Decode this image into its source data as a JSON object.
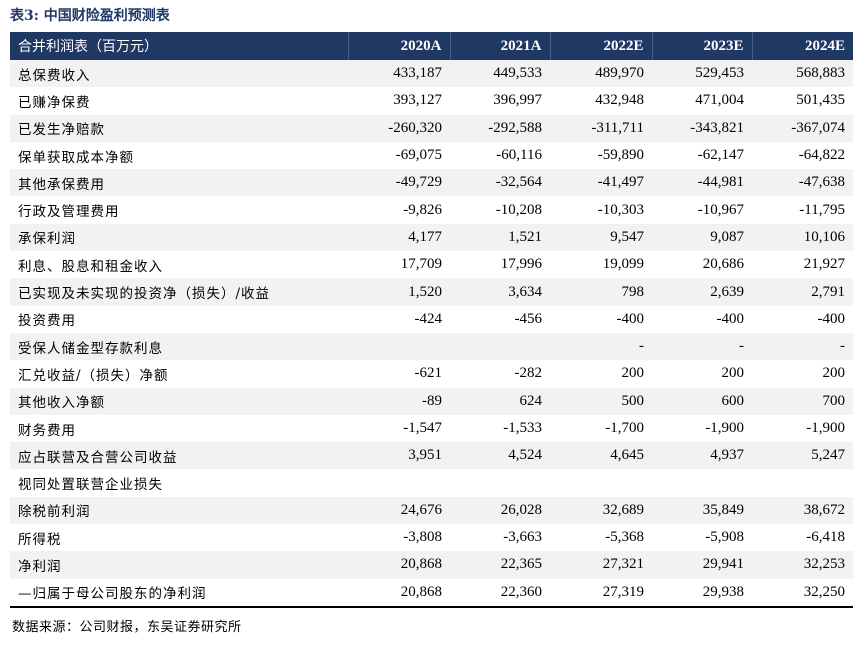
{
  "title": "表3:  中国财险盈利预测表",
  "table": {
    "headers": [
      "合并利润表（百万元）",
      "2020A",
      "2021A",
      "2022E",
      "2023E",
      "2024E"
    ],
    "rows": [
      [
        "总保费收入",
        "433,187",
        "449,533",
        "489,970",
        "529,453",
        "568,883"
      ],
      [
        "已赚净保费",
        "393,127",
        "396,997",
        "432,948",
        "471,004",
        "501,435"
      ],
      [
        "已发生净赔款",
        "-260,320",
        "-292,588",
        "-311,711",
        "-343,821",
        "-367,074"
      ],
      [
        "保单获取成本净额",
        "-69,075",
        "-60,116",
        "-59,890",
        "-62,147",
        "-64,822"
      ],
      [
        "其他承保费用",
        "-49,729",
        "-32,564",
        "-41,497",
        "-44,981",
        "-47,638"
      ],
      [
        "行政及管理费用",
        "-9,826",
        "-10,208",
        "-10,303",
        "-10,967",
        "-11,795"
      ],
      [
        "承保利润",
        "4,177",
        "1,521",
        "9,547",
        "9,087",
        "10,106"
      ],
      [
        "利息、股息和租金收入",
        "17,709",
        "17,996",
        "19,099",
        "20,686",
        "21,927"
      ],
      [
        "已实现及未实现的投资净（损失）/收益",
        "1,520",
        "3,634",
        "798",
        "2,639",
        "2,791"
      ],
      [
        "投资费用",
        "-424",
        "-456",
        "-400",
        "-400",
        "-400"
      ],
      [
        "受保人储金型存款利息",
        "",
        "",
        "-",
        "-",
        "-"
      ],
      [
        "汇兑收益/（损失）净额",
        "-621",
        "-282",
        "200",
        "200",
        "200"
      ],
      [
        "其他收入净额",
        "-89",
        "624",
        "500",
        "600",
        "700"
      ],
      [
        "财务费用",
        "-1,547",
        "-1,533",
        "-1,700",
        "-1,900",
        "-1,900"
      ],
      [
        "应占联营及合营公司收益",
        "3,951",
        "4,524",
        "4,645",
        "4,937",
        "5,247"
      ],
      [
        "视同处置联营企业损失",
        "",
        "",
        "",
        "",
        ""
      ],
      [
        "除税前利润",
        "24,676",
        "26,028",
        "32,689",
        "35,849",
        "38,672"
      ],
      [
        "所得税",
        "-3,808",
        "-3,663",
        "-5,368",
        "-5,908",
        "-6,418"
      ],
      [
        "净利润",
        "20,868",
        "22,365",
        "27,321",
        "29,941",
        "32,253"
      ],
      [
        "—归属于母公司股东的净利润",
        "20,868",
        "22,360",
        "27,319",
        "29,938",
        "32,250"
      ]
    ]
  },
  "source": "数据来源：公司财报，东吴证券研究所",
  "colors": {
    "header_bg": "#1f3864",
    "alt_row_bg": "#f2f2f2",
    "title": "#1f3864"
  }
}
